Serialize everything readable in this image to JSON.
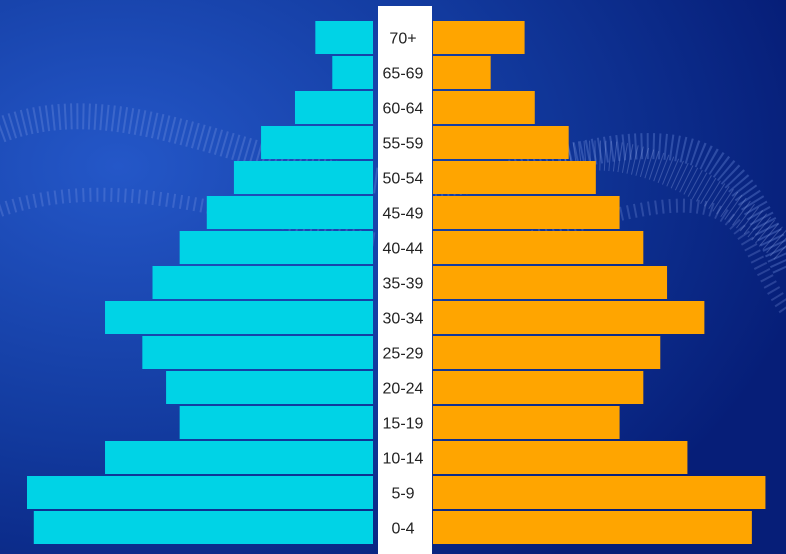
{
  "colors": {
    "left_bars": "#00d3e6",
    "right_bars": "#ffa500",
    "label_strip": "#ffffff",
    "background_dark": "#061e78",
    "background_light": "#1c4fc0"
  },
  "chart_data": {
    "type": "bar",
    "orientation": "horizontal-population-pyramid",
    "categories": [
      "70+",
      "65-69",
      "60-64",
      "55-59",
      "50-54",
      "45-49",
      "40-44",
      "35-39",
      "30-34",
      "25-29",
      "20-24",
      "15-19",
      "10-14",
      "5-9",
      "0-4"
    ],
    "series": [
      {
        "side": "left",
        "values": [
          1.7,
          1.2,
          2.3,
          3.3,
          4.1,
          4.9,
          5.7,
          6.5,
          7.9,
          6.8,
          6.1,
          5.7,
          7.9,
          10.2,
          10.0
        ]
      },
      {
        "side": "right",
        "values": [
          2.7,
          1.7,
          3.0,
          4.0,
          4.8,
          5.5,
          6.2,
          6.9,
          8.0,
          6.7,
          6.2,
          5.5,
          7.5,
          9.8,
          9.4
        ]
      }
    ],
    "xlim": [
      0,
      10.2
    ],
    "axes": "hidden",
    "grid": false,
    "legend": "none"
  }
}
